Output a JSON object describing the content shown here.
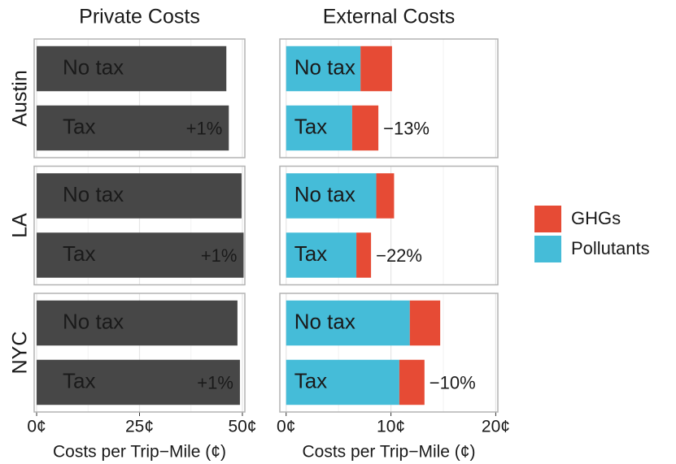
{
  "chart_data": [
    {
      "type": "bar",
      "title": "Private Costs",
      "xlabel": "Costs per Trip−Mile (¢)",
      "rows": [
        "Austin",
        "LA",
        "NYC"
      ],
      "categories": [
        "No tax",
        "Tax"
      ],
      "series": [
        {
          "color": "#474747",
          "values": [
            [
              46.1,
              46.7
            ],
            [
              49.8,
              50.3
            ],
            [
              48.8,
              49.4
            ]
          ]
        }
      ],
      "annotations": [
        "+1%",
        "+1%",
        "+1%"
      ],
      "xlim": [
        -0.6,
        50.6
      ],
      "xticks": [
        {
          "value": 0,
          "label": "0¢"
        },
        {
          "value": 25,
          "label": "25¢"
        },
        {
          "value": 50,
          "label": "50¢"
        }
      ],
      "xminor": [
        12.5,
        37.5
      ],
      "grid": true
    },
    {
      "type": "stacked_bar",
      "title": "External Costs",
      "xlabel": "Costs per Trip−Mile (¢)",
      "categories": [
        "No tax",
        "Tax"
      ],
      "series": [
        {
          "name": "Pollutants",
          "color": "#45bcd8",
          "values": [
            [
              7.1,
              6.3
            ],
            [
              8.6,
              6.7
            ],
            [
              11.8,
              10.8
            ]
          ]
        },
        {
          "name": "GHGs",
          "color": "#e64b35",
          "values": [
            [
              3.0,
              2.5
            ],
            [
              1.7,
              1.4
            ],
            [
              2.9,
              2.4
            ]
          ]
        }
      ],
      "annotations": [
        "−13%",
        "−22%",
        "−10%"
      ],
      "xlim": [
        -0.6,
        20.2
      ],
      "xticks": [
        {
          "value": 0,
          "label": "0¢"
        },
        {
          "value": 10,
          "label": "10¢"
        },
        {
          "value": 20,
          "label": "20¢"
        }
      ],
      "xminor": [
        5,
        15
      ],
      "grid": true
    }
  ]
}
